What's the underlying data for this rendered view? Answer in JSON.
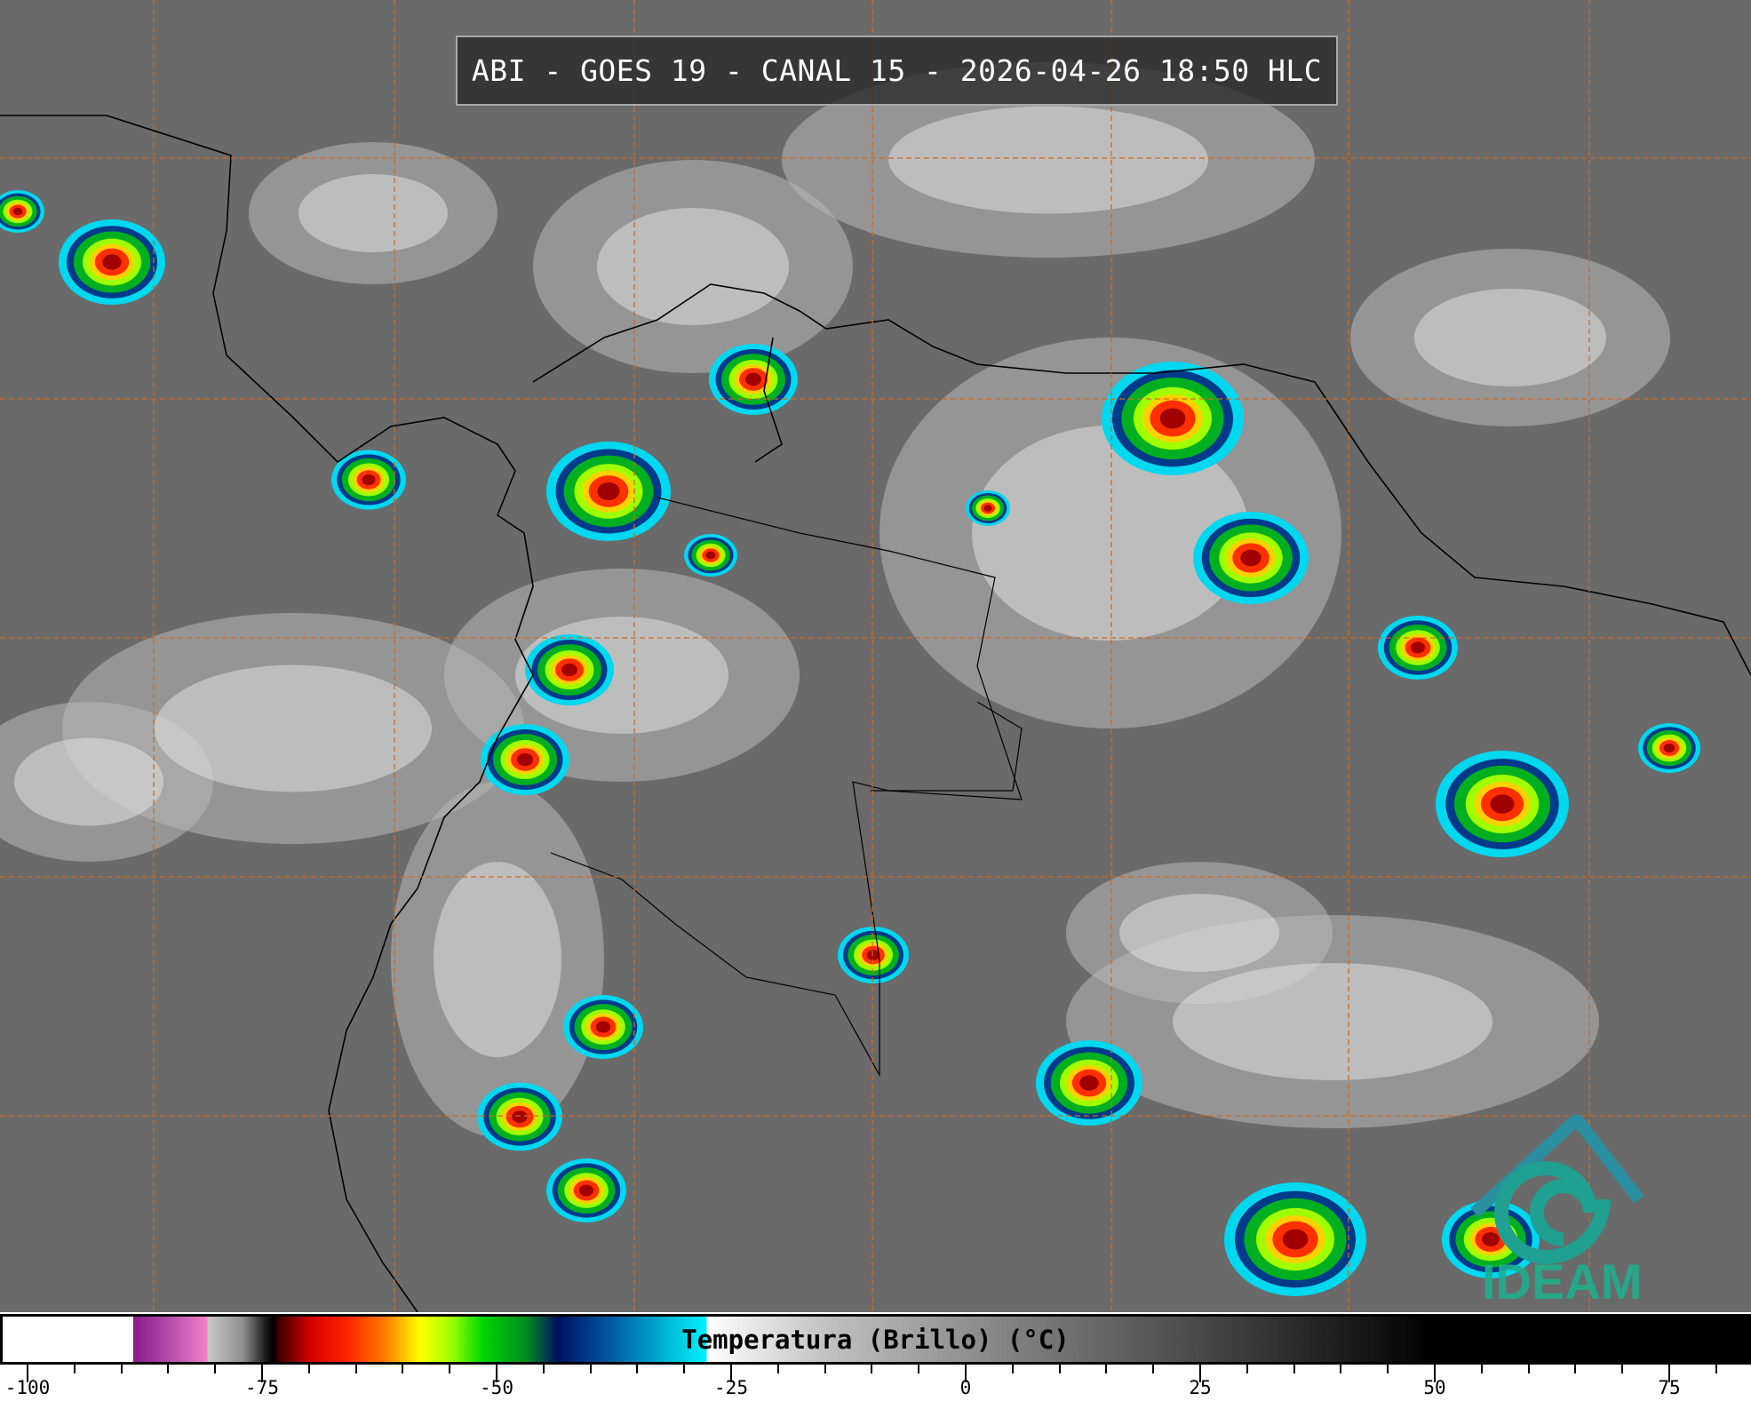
{
  "title": "ABI - GOES 19 - CANAL 15 - 2026-04-26 18:50 HLC",
  "colorbar": {
    "label": "Temperatura (Brillo) (°C)",
    "min": -100,
    "max": 85,
    "ticks": [
      "-100",
      "-75",
      "-50",
      "-25",
      "0",
      "25",
      "50",
      "75"
    ]
  },
  "logo": {
    "text": "IDEAM",
    "color": "#1fae8e"
  },
  "colors": {
    "grid": "#d2691e",
    "coast": "#000000",
    "background_gray": "#6e6e6e"
  }
}
